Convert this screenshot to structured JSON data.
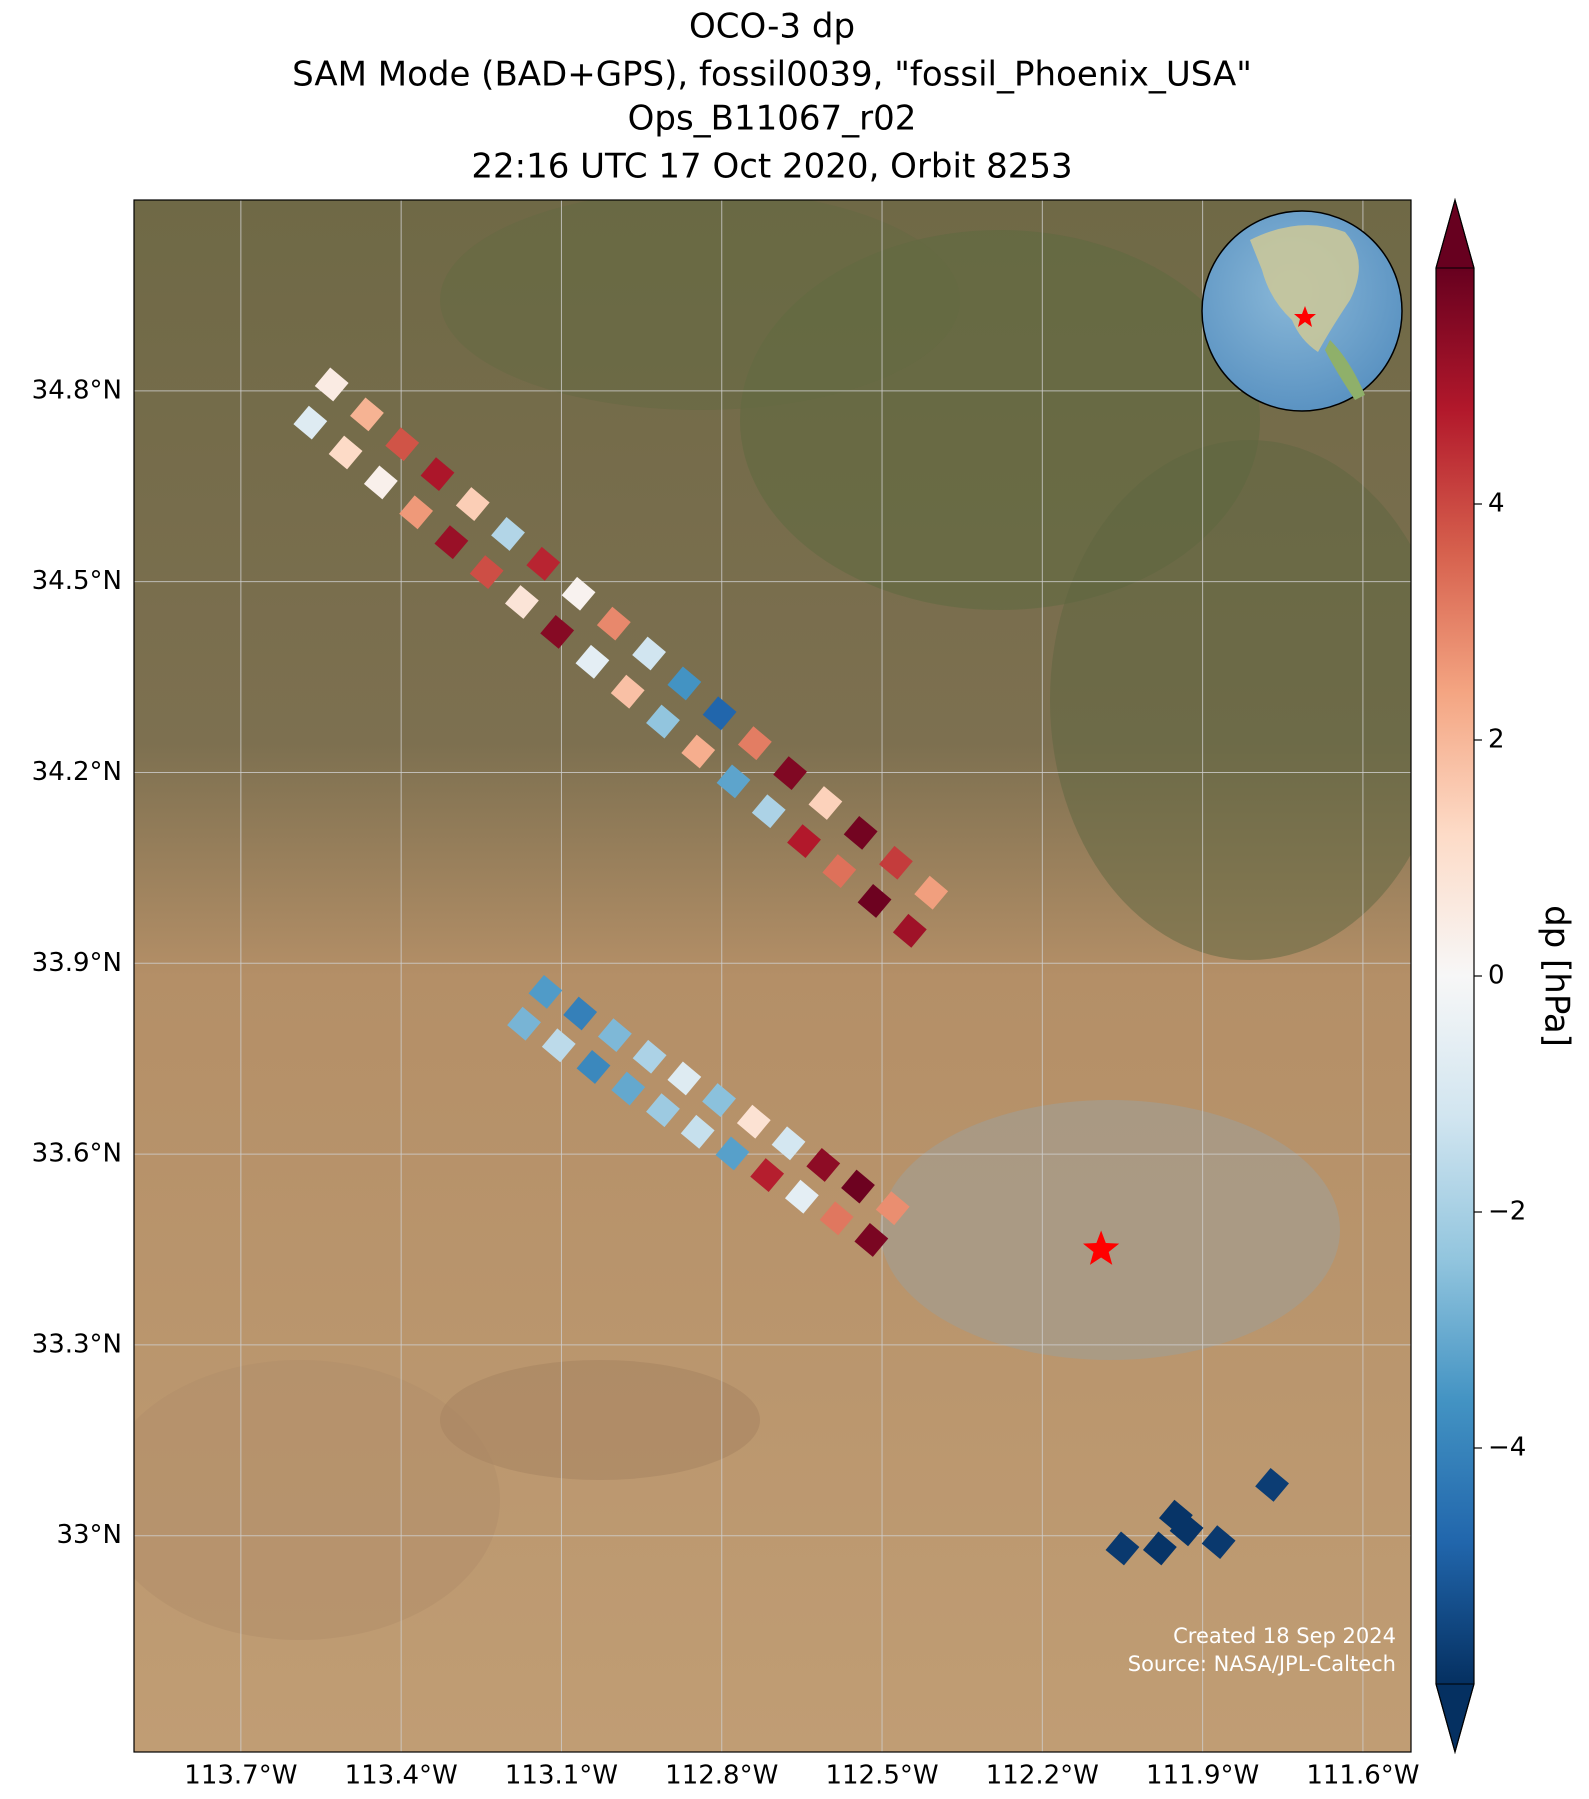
{
  "chart_data": {
    "type": "map",
    "title": [
      "OCO-3 dp",
      "SAM Mode (BAD+GPS), fossil0039, \"fossil_Phoenix_USA\"",
      "Ops_B11067_r02",
      "22:16 UTC 17 Oct 2020, Orbit 8253"
    ],
    "xlim": [
      -113.9,
      -111.51
    ],
    "ylim": [
      32.66,
      35.1
    ],
    "xticks": [
      {
        "value": -113.7,
        "label": "113.7°W"
      },
      {
        "value": -113.4,
        "label": "113.4°W"
      },
      {
        "value": -113.1,
        "label": "113.1°W"
      },
      {
        "value": -112.8,
        "label": "112.8°W"
      },
      {
        "value": -112.5,
        "label": "112.5°W"
      },
      {
        "value": -112.2,
        "label": "112.2°W"
      },
      {
        "value": -111.9,
        "label": "111.9°W"
      },
      {
        "value": -111.6,
        "label": "111.6°W"
      }
    ],
    "yticks": [
      {
        "value": 33.0,
        "label": "33°N"
      },
      {
        "value": 33.3,
        "label": "33.3°N"
      },
      {
        "value": 33.6,
        "label": "33.6°N"
      },
      {
        "value": 33.9,
        "label": "33.9°N"
      },
      {
        "value": 34.2,
        "label": "34.2°N"
      },
      {
        "value": 34.5,
        "label": "34.5°N"
      },
      {
        "value": 34.8,
        "label": "34.8°N"
      }
    ],
    "grid": true,
    "colormap": "RdBu_r",
    "clim": [
      -6,
      6
    ],
    "colorbar_label": "dp [hPa]",
    "colorbar_ticks": [
      {
        "value": -4,
        "label": "−4"
      },
      {
        "value": -2,
        "label": "−2"
      },
      0,
      2,
      4
    ],
    "soundings": {
      "lon": [
        -113.53,
        -113.464,
        -113.398,
        -113.332,
        -113.266,
        -113.2,
        -113.134,
        -113.068,
        -113.002,
        -112.936,
        -112.87,
        -112.804,
        -112.738,
        -112.672,
        -112.606,
        -112.54,
        -112.474,
        -112.408,
        -113.57,
        -113.504,
        -113.438,
        -113.372,
        -113.306,
        -113.24,
        -113.174,
        -113.108,
        -113.042,
        -112.976,
        -112.91,
        -112.844,
        -112.778,
        -112.712,
        -112.646,
        -112.58,
        -112.514,
        -112.448,
        -113.13,
        -113.065,
        -113.0,
        -112.935,
        -112.87,
        -112.805,
        -112.74,
        -112.675,
        -112.61,
        -112.545,
        -112.48,
        -113.17,
        -113.105,
        -113.04,
        -112.975,
        -112.91,
        -112.845,
        -112.78,
        -112.715,
        -112.65,
        -112.585,
        -112.52,
        -112.05,
        -111.98,
        -111.93,
        -111.87,
        -111.95,
        -111.77
      ],
      "lat": [
        34.81,
        34.763,
        34.716,
        34.669,
        34.622,
        34.575,
        34.528,
        34.481,
        34.434,
        34.387,
        34.34,
        34.293,
        34.246,
        34.199,
        34.152,
        34.105,
        34.058,
        34.011,
        34.75,
        34.703,
        34.656,
        34.609,
        34.562,
        34.515,
        34.468,
        34.421,
        34.374,
        34.327,
        34.28,
        34.233,
        34.186,
        34.139,
        34.092,
        34.045,
        33.998,
        33.951,
        33.855,
        33.821,
        33.787,
        33.753,
        33.719,
        33.685,
        33.651,
        33.617,
        33.583,
        33.549,
        33.515,
        33.805,
        33.771,
        33.737,
        33.703,
        33.669,
        33.635,
        33.601,
        33.567,
        33.533,
        33.499,
        33.465,
        32.98,
        32.98,
        33.01,
        32.99,
        33.03,
        33.08
      ],
      "values": [
        0.5,
        2.1,
        3.8,
        4.9,
        1.5,
        -1.8,
        4.6,
        0.2,
        2.9,
        -1.2,
        -3.6,
        -4.8,
        3.1,
        5.6,
        1.4,
        5.8,
        4.2,
        2.5,
        -0.8,
        1.2,
        0.3,
        2.6,
        5.2,
        3.9,
        0.8,
        5.5,
        -0.6,
        1.8,
        -2.4,
        2.2,
        -3.2,
        -1.9,
        4.8,
        3.3,
        5.9,
        5.1,
        -3.4,
        -4.1,
        -2.7,
        -1.9,
        -0.8,
        -2.5,
        0.9,
        -1.1,
        5.4,
        5.9,
        2.8,
        -2.8,
        -1.6,
        -3.9,
        -3.1,
        -2.2,
        -1.4,
        -3.3,
        4.7,
        -0.6,
        3.2,
        5.7,
        -5.8,
        -5.9,
        -5.9,
        -5.8,
        -5.9,
        -5.7
      ]
    },
    "target": {
      "lon": -112.09,
      "lat": 33.45,
      "color": "#ff0000"
    },
    "annotations": [
      "Created 18 Sep 2024",
      "Source: NASA/JPL-Caltech"
    ]
  }
}
